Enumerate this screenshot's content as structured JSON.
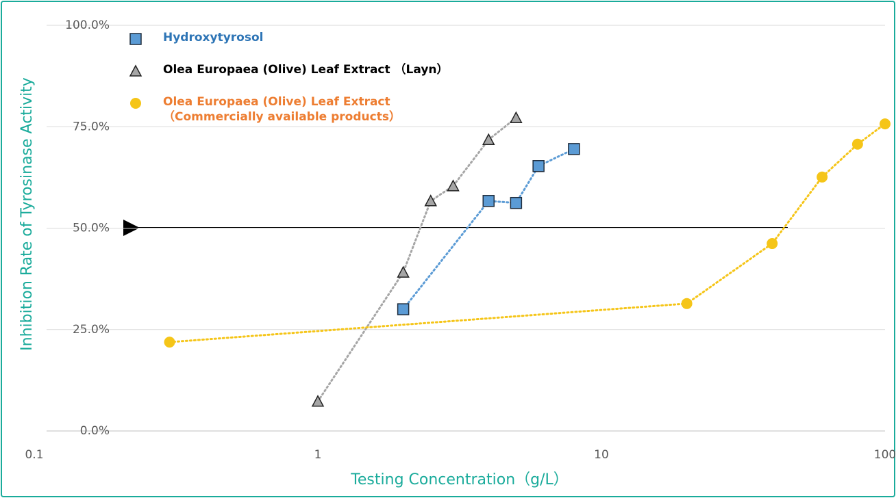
{
  "chart_data": {
    "type": "scatter",
    "x_label": "Testing Concentration（g/L）",
    "y_label": "Inhibition Rate of Tyrosinase Activity",
    "xscale": "log",
    "xlim": [
      0.1,
      100
    ],
    "xticks": [
      0.1,
      1,
      10,
      100
    ],
    "ylim": [
      0,
      100
    ],
    "yticks": [
      {
        "value": 0,
        "label": "0.0%"
      },
      {
        "value": 25,
        "label": "25.0%"
      },
      {
        "value": 50,
        "label": "50.0%"
      },
      {
        "value": 75,
        "label": "75.0%"
      },
      {
        "value": 100,
        "label": "100.0%"
      }
    ],
    "grid": true,
    "legend": "upper left",
    "series": [
      {
        "name": "Hydroxytyrosol",
        "color": "#5b9bd5",
        "marker": "square",
        "x": [
          2,
          4,
          5,
          6,
          8
        ],
        "values": [
          30,
          56.7,
          56.2,
          65.3,
          69.5
        ]
      },
      {
        "name": "Olea Europaea (Olive) Leaf Extract （Layn）",
        "color": "#a6a6a6",
        "marker": "triangle",
        "x": [
          1,
          2,
          2.5,
          3,
          4,
          5
        ],
        "values": [
          7.3,
          39.1,
          56.7,
          60.4,
          71.8,
          77.2
        ]
      },
      {
        "name": "Olea Europaea (Olive) Leaf Extract\n（Commercially available products）",
        "color": "#f5c518",
        "marker": "circle",
        "x": [
          0.3,
          20,
          40,
          60,
          80,
          100
        ],
        "values": [
          21.9,
          31.4,
          46.2,
          62.6,
          70.7,
          75.7
        ]
      }
    ]
  }
}
